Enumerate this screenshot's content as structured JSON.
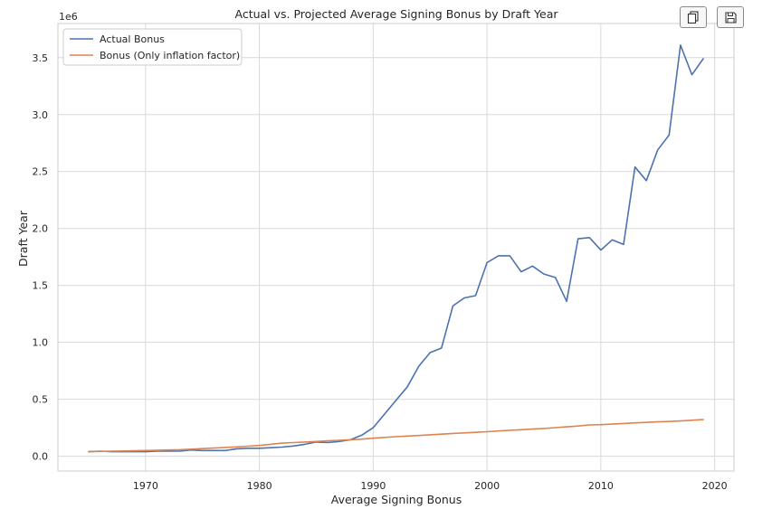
{
  "toolbar": {
    "copy_icon": "copy-icon",
    "save_icon": "floppy-disk-icon"
  },
  "chart_data": {
    "type": "line",
    "title": "Actual vs. Projected Average Signing Bonus by Draft Year",
    "xlabel": "Average Signing Bonus",
    "ylabel": "Draft Year",
    "y_offset_label": "1e6",
    "xlim": [
      1962.3,
      2021.7
    ],
    "ylim": [
      -0.13,
      3.8
    ],
    "x_ticks": [
      1970,
      1980,
      1990,
      2000,
      2010,
      2020
    ],
    "x_tick_labels": [
      "1970",
      "1980",
      "1990",
      "2000",
      "2010",
      "2020"
    ],
    "y_ticks": [
      0.0,
      0.5,
      1.0,
      1.5,
      2.0,
      2.5,
      3.0,
      3.5
    ],
    "y_tick_labels": [
      "0.0",
      "0.5",
      "1.0",
      "1.5",
      "2.0",
      "2.5",
      "3.0",
      "3.5"
    ],
    "grid": true,
    "legend_position": "top-left",
    "x": [
      1965,
      1966,
      1967,
      1968,
      1969,
      1970,
      1971,
      1972,
      1973,
      1974,
      1975,
      1976,
      1977,
      1978,
      1979,
      1980,
      1981,
      1982,
      1983,
      1984,
      1985,
      1986,
      1987,
      1988,
      1989,
      1990,
      1991,
      1992,
      1993,
      1994,
      1995,
      1996,
      1997,
      1998,
      1999,
      2000,
      2001,
      2002,
      2003,
      2004,
      2005,
      2006,
      2007,
      2008,
      2009,
      2010,
      2011,
      2012,
      2013,
      2014,
      2015,
      2016,
      2017,
      2018,
      2019
    ],
    "series": [
      {
        "name": "Actual Bonus",
        "color": "#4c72b0",
        "values": [
          0.04,
          0.045,
          0.04,
          0.04,
          0.04,
          0.04,
          0.045,
          0.045,
          0.045,
          0.055,
          0.05,
          0.05,
          0.05,
          0.065,
          0.07,
          0.07,
          0.075,
          0.08,
          0.09,
          0.105,
          0.125,
          0.12,
          0.13,
          0.145,
          0.185,
          0.25,
          0.37,
          0.49,
          0.61,
          0.79,
          0.91,
          0.95,
          1.32,
          1.39,
          1.41,
          1.7,
          1.76,
          1.76,
          1.62,
          1.67,
          1.6,
          1.57,
          1.36,
          1.91,
          1.92,
          1.81,
          1.9,
          1.86,
          2.54,
          2.42,
          2.69,
          2.82,
          3.61,
          3.35,
          3.49
        ]
      },
      {
        "name": "Bonus (Only inflation factor)",
        "color": "#dd8452",
        "values": [
          0.04,
          0.042,
          0.044,
          0.046,
          0.048,
          0.05,
          0.052,
          0.055,
          0.057,
          0.062,
          0.067,
          0.072,
          0.077,
          0.082,
          0.088,
          0.095,
          0.105,
          0.115,
          0.12,
          0.125,
          0.13,
          0.135,
          0.14,
          0.145,
          0.15,
          0.158,
          0.165,
          0.172,
          0.177,
          0.182,
          0.188,
          0.194,
          0.2,
          0.205,
          0.21,
          0.215,
          0.222,
          0.228,
          0.233,
          0.238,
          0.244,
          0.251,
          0.258,
          0.265,
          0.275,
          0.277,
          0.282,
          0.288,
          0.293,
          0.297,
          0.302,
          0.305,
          0.31,
          0.316,
          0.322
        ]
      }
    ]
  }
}
